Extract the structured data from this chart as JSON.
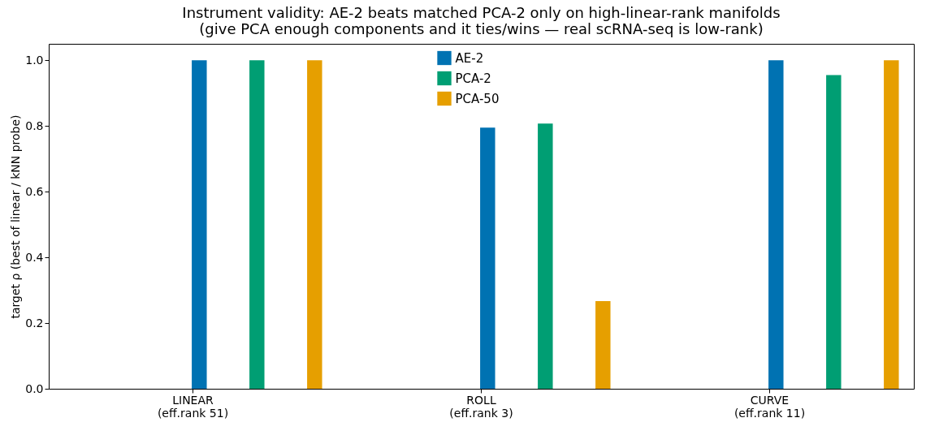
{
  "chart_data": {
    "type": "bar",
    "title": "Instrument validity: AE-2 beats matched PCA-2 only on high-linear-rank manifolds",
    "subtitle": "(give PCA enough components and it ties/wins — real scRNA-seq is low-rank)",
    "ylabel": "target ρ (best of linear / kNN probe)",
    "categories": [
      "LINEAR\n(eff.rank 51)",
      "ROLL\n(eff.rank 3)",
      "CURVE\n(eff.rank 11)"
    ],
    "series": [
      {
        "name": "AE-2",
        "color": "#0072b2",
        "values": [
          1.0,
          0.795,
          1.0
        ]
      },
      {
        "name": "PCA-2",
        "color": "#009e73",
        "values": [
          1.0,
          0.807,
          0.955
        ]
      },
      {
        "name": "PCA-50",
        "color": "#e69f00",
        "values": [
          1.0,
          0.267,
          1.0
        ]
      }
    ],
    "ylim": [
      0,
      1.05
    ],
    "yticks": [
      {
        "value": 0,
        "label": "0.0"
      },
      {
        "value": 0.2,
        "label": "0.2"
      },
      {
        "value": 0.4,
        "label": "0.4"
      },
      {
        "value": 0.6,
        "label": "0.6"
      },
      {
        "value": 0.8,
        "label": "0.8"
      },
      {
        "value": 1,
        "label": "1.0"
      }
    ],
    "grid": false,
    "legend": "top"
  }
}
